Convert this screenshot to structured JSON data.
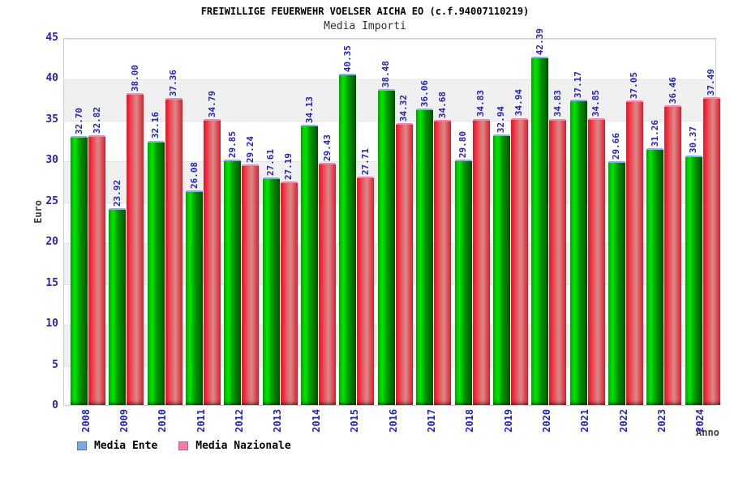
{
  "chart_data": {
    "type": "bar",
    "title": "FREIWILLIGE FEUERWEHR VOELSER AICHA EO (c.f.94007110219)",
    "subtitle": "Media Importi",
    "xlabel": "Anno",
    "ylabel": "Euro",
    "ylim": [
      0,
      45
    ],
    "ytick_step": 5,
    "grid": true,
    "legend_position": "bottom-left",
    "categories": [
      "2008",
      "2009",
      "2010",
      "2011",
      "2012",
      "2013",
      "2014",
      "2015",
      "2016",
      "2017",
      "2018",
      "2019",
      "2020",
      "2021",
      "2022",
      "2023",
      "2024"
    ],
    "series": [
      {
        "name": "Media Ente",
        "values": [
          32.7,
          23.92,
          32.16,
          26.08,
          29.85,
          27.61,
          34.13,
          40.35,
          38.48,
          36.06,
          29.8,
          32.94,
          42.39,
          37.17,
          29.66,
          31.26,
          30.37
        ]
      },
      {
        "name": "Media Nazionale",
        "values": [
          32.82,
          38.0,
          37.36,
          34.79,
          29.24,
          27.19,
          29.43,
          27.71,
          34.32,
          34.68,
          34.83,
          34.94,
          34.83,
          34.85,
          37.05,
          36.46,
          37.49
        ]
      }
    ]
  },
  "colors": {
    "title": "#000000",
    "subtitle": "#303030",
    "tick_label": "#2424bb",
    "axis_title": "#404040",
    "band_gray": "#f0f0f0",
    "gridline": "#e4e4e4",
    "frame_border": "#cccccc",
    "ente_gradient": [
      "#00aa00",
      "#00e800",
      "#009600",
      "#005200"
    ],
    "ente_cap": "#8ab2e8",
    "nazionale_gradient": [
      "#f01e32",
      "#ea4e58",
      "#d98a8a",
      "#de1e2e"
    ],
    "nazionale_cap": "#f287ab",
    "legend_ente_fill": "#7aabe0",
    "legend_ente_border": "#4a7cba",
    "legend_nazionale_fill": "#f07fa8",
    "legend_nazionale_border": "#c85a86"
  }
}
